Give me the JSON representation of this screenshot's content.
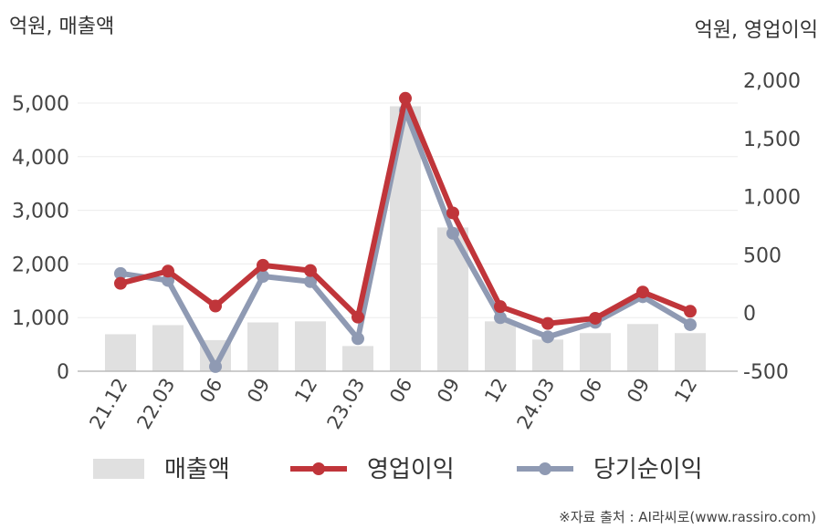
{
  "chart_data": {
    "type": "bar+line",
    "left_axis_unit": "억원, 매출액",
    "right_axis_unit": "억원, 영업이익",
    "categories": [
      "21.12",
      "22.03",
      "06",
      "09",
      "12",
      "23.03",
      "06",
      "09",
      "12",
      "24.03",
      "06",
      "09",
      "12"
    ],
    "left_ylim": [
      0,
      5000
    ],
    "left_ticks": [
      "0",
      "1,000",
      "2,000",
      "3,000",
      "4,000",
      "5,000"
    ],
    "left_tick_values": [
      0,
      1000,
      2000,
      3000,
      4000,
      5000
    ],
    "right_ylim": [
      -500,
      2000
    ],
    "right_ticks": [
      "-500",
      "0",
      "500",
      "1,000",
      "1,500",
      "2,000"
    ],
    "right_tick_values": [
      -500,
      0,
      500,
      1000,
      1500,
      2000
    ],
    "grid": true,
    "series": [
      {
        "name": "매출액",
        "kind": "bar",
        "axis": "left",
        "color": "#e0e0e0",
        "values": [
          690,
          860,
          580,
          910,
          930,
          470,
          4940,
          2680,
          930,
          590,
          710,
          880,
          710
        ]
      },
      {
        "name": "영업이익",
        "kind": "line",
        "axis": "right",
        "color": "#c0353a",
        "values": [
          255,
          360,
          60,
          410,
          365,
          -35,
          1845,
          860,
          55,
          -90,
          -45,
          180,
          15
        ]
      },
      {
        "name": "당기순이익",
        "kind": "line",
        "axis": "right",
        "color": "#8f9ab3",
        "values": [
          340,
          280,
          -460,
          315,
          270,
          -220,
          1740,
          685,
          -40,
          -205,
          -80,
          140,
          -100
        ]
      }
    ],
    "legend_position": "bottom",
    "source": "※자료 출처 : AI라씨로(www.rassiro.com)"
  }
}
